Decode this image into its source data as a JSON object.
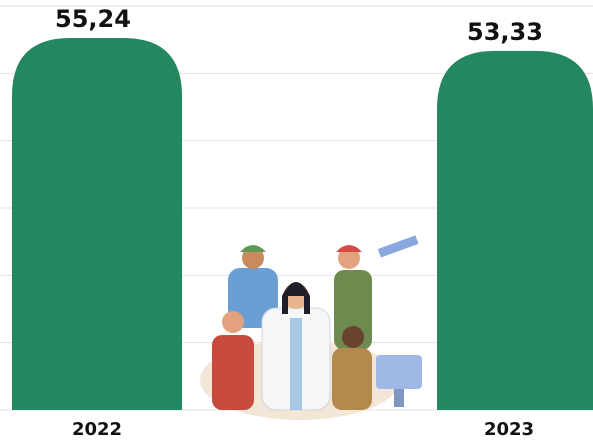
{
  "chart_data": {
    "type": "bar",
    "categories": [
      "2022",
      "2023"
    ],
    "values": [
      55.24,
      53.33
    ],
    "value_labels": [
      "55,24",
      "53,33"
    ],
    "color": "#23875f",
    "ylim": [
      0,
      60
    ],
    "yticks": [
      0,
      10,
      20,
      30,
      40,
      50,
      60
    ],
    "grid": true
  }
}
